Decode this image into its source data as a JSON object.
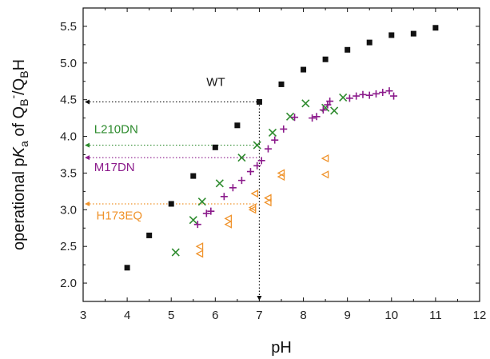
{
  "chart_data": {
    "type": "scatter",
    "xlabel": "pH",
    "ylabel": {
      "pre": "operational p",
      "italic": "K",
      "sub_a": "a",
      "mid": " of Q",
      "sub_b1": "B",
      "sup_minus": "-",
      "slash": "/Q",
      "sub_b2": "B",
      "post": "H"
    },
    "xlim": [
      3,
      12
    ],
    "ylim": [
      1.75,
      5.75
    ],
    "xticks": [
      "3",
      "4",
      "5",
      "6",
      "7",
      "8",
      "9",
      "10",
      "11",
      "12"
    ],
    "yticks": [
      "2.0",
      "2.5",
      "3.0",
      "3.5",
      "4.0",
      "4.5",
      "5.0",
      "5.5"
    ],
    "grid": false,
    "colors": {
      "WT": "#111111",
      "L210DN": "#2e8b2e",
      "M17DN": "#8b1a8b",
      "H173EQ": "#f0932b"
    },
    "series": [
      {
        "name": "WT",
        "marker": "square",
        "points": [
          [
            4.0,
            2.21
          ],
          [
            4.5,
            2.65
          ],
          [
            5.0,
            3.08
          ],
          [
            5.5,
            3.46
          ],
          [
            6.0,
            3.85
          ],
          [
            6.5,
            4.15
          ],
          [
            7.0,
            4.47
          ],
          [
            7.5,
            4.71
          ],
          [
            8.0,
            4.91
          ],
          [
            8.5,
            5.05
          ],
          [
            9.0,
            5.18
          ],
          [
            9.5,
            5.28
          ],
          [
            10.0,
            5.38
          ],
          [
            10.5,
            5.4
          ],
          [
            11.0,
            5.48
          ]
        ]
      },
      {
        "name": "L210DN",
        "marker": "x",
        "points": [
          [
            5.1,
            2.42
          ],
          [
            5.5,
            2.86
          ],
          [
            5.7,
            3.11
          ],
          [
            6.1,
            3.36
          ],
          [
            6.6,
            3.71
          ],
          [
            6.95,
            3.88
          ],
          [
            7.3,
            4.05
          ],
          [
            7.7,
            4.27
          ],
          [
            8.05,
            4.45
          ],
          [
            8.5,
            4.39
          ],
          [
            8.7,
            4.35
          ],
          [
            8.9,
            4.53
          ]
        ]
      },
      {
        "name": "M17DN",
        "marker": "plus",
        "points": [
          [
            5.6,
            2.8
          ],
          [
            5.8,
            2.95
          ],
          [
            5.9,
            2.98
          ],
          [
            6.2,
            3.18
          ],
          [
            6.4,
            3.3
          ],
          [
            6.6,
            3.4
          ],
          [
            6.8,
            3.52
          ],
          [
            6.95,
            3.6
          ],
          [
            7.05,
            3.67
          ],
          [
            7.2,
            3.83
          ],
          [
            7.35,
            3.95
          ],
          [
            7.55,
            4.1
          ],
          [
            7.8,
            4.26
          ],
          [
            8.2,
            4.25
          ],
          [
            8.3,
            4.27
          ],
          [
            8.45,
            4.36
          ],
          [
            8.55,
            4.43
          ],
          [
            8.6,
            4.48
          ],
          [
            9.05,
            4.52
          ],
          [
            9.2,
            4.55
          ],
          [
            9.35,
            4.57
          ],
          [
            9.5,
            4.56
          ],
          [
            9.65,
            4.58
          ],
          [
            9.8,
            4.6
          ],
          [
            9.95,
            4.62
          ],
          [
            10.05,
            4.55
          ]
        ]
      },
      {
        "name": "H173EQ",
        "marker": "triangle-left",
        "points": [
          [
            5.65,
            2.4
          ],
          [
            5.65,
            2.5
          ],
          [
            6.3,
            2.8
          ],
          [
            6.3,
            2.88
          ],
          [
            6.85,
            3.0
          ],
          [
            6.85,
            3.03
          ],
          [
            6.9,
            3.22
          ],
          [
            7.2,
            3.1
          ],
          [
            7.2,
            3.16
          ],
          [
            7.5,
            3.45
          ],
          [
            7.5,
            3.5
          ],
          [
            8.5,
            3.48
          ],
          [
            8.5,
            3.7
          ]
        ]
      }
    ],
    "annotations": [
      {
        "text": "WT",
        "color": "#111111",
        "x": 5.8,
        "y": 4.74,
        "ref_y": 4.47,
        "ref_x_end": 7.0
      },
      {
        "text": "L210DN",
        "color": "#2e8b2e",
        "x": 3.25,
        "y": 4.1,
        "ref_y": 3.88,
        "ref_x_end": 6.95
      },
      {
        "text": "M17DN",
        "color": "#8b1a8b",
        "x": 3.25,
        "y": 3.58,
        "ref_y": 3.71,
        "ref_x_end": 7.0
      },
      {
        "text": "H173EQ",
        "color": "#f0932b",
        "x": 3.3,
        "y": 2.92,
        "ref_y": 3.08,
        "ref_x_end": 7.0
      }
    ],
    "vline_x": 7.0
  }
}
